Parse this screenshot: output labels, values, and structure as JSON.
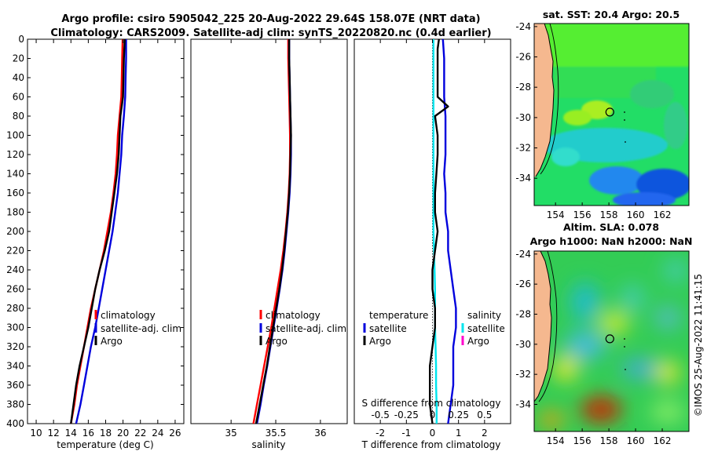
{
  "header": {
    "title_line1": "Argo profile: csiro 5905042_225 20-Aug-2022 29.64S 158.07E (NRT data)",
    "title_line2": "Climatology: CARS2009. Satellite-adj clim: synTS_20220820.nc (0.4d earlier)"
  },
  "colors": {
    "climatology": "#ff0000",
    "satellite": "#0000dd",
    "argo": "#000000",
    "sal_diff_sat": "#00e5ee",
    "sal_diff_argo": "#ff00cc",
    "land": "#f5b88f"
  },
  "chart_data": [
    {
      "id": "temperature",
      "type": "line",
      "xlabel": "temperature (deg C)",
      "ylabel": "",
      "xlim": [
        9,
        27
      ],
      "ylim": [
        400,
        0
      ],
      "xticks": [
        "10",
        "12",
        "14",
        "16",
        "18",
        "20",
        "22",
        "24",
        "26"
      ],
      "xtick_values": [
        10,
        12,
        14,
        16,
        18,
        20,
        22,
        24,
        26
      ],
      "yticks": [
        "0",
        "20",
        "40",
        "60",
        "80",
        "100",
        "120",
        "140",
        "160",
        "180",
        "200",
        "220",
        "240",
        "260",
        "280",
        "300",
        "320",
        "340",
        "360",
        "380",
        "400"
      ],
      "ytick_values": [
        0,
        20,
        40,
        60,
        80,
        100,
        120,
        140,
        160,
        180,
        200,
        220,
        240,
        260,
        280,
        300,
        320,
        340,
        360,
        380,
        400
      ],
      "legend": [
        "climatology",
        "satellite-adj. clim",
        "Argo"
      ],
      "series": [
        {
          "name": "climatology",
          "depth": [
            0,
            20,
            40,
            60,
            80,
            100,
            120,
            140,
            160,
            180,
            200,
            220,
            240,
            260,
            280,
            300,
            320,
            340,
            360,
            380,
            400
          ],
          "values": [
            19.95,
            19.9,
            19.85,
            19.8,
            19.6,
            19.4,
            19.3,
            19.15,
            18.9,
            18.6,
            18.2,
            17.8,
            17.3,
            16.8,
            16.3,
            15.9,
            15.5,
            15.1,
            14.7,
            14.4,
            14.0
          ]
        },
        {
          "name": "satellite-adj. clim",
          "depth": [
            0,
            20,
            40,
            60,
            80,
            100,
            120,
            140,
            160,
            180,
            200,
            220,
            240,
            260,
            280,
            300,
            320,
            340,
            360,
            380,
            400
          ],
          "values": [
            20.35,
            20.35,
            20.3,
            20.25,
            20.1,
            19.9,
            19.8,
            19.6,
            19.4,
            19.1,
            18.8,
            18.4,
            18.0,
            17.6,
            17.2,
            16.8,
            16.3,
            15.9,
            15.5,
            15.1,
            14.6
          ]
        },
        {
          "name": "Argo",
          "depth": [
            0,
            20,
            40,
            60,
            80,
            100,
            120,
            140,
            160,
            180,
            200,
            220,
            240,
            260,
            280,
            300,
            320,
            340,
            360,
            380,
            400
          ],
          "values": [
            20.2,
            20.1,
            20.05,
            20.0,
            19.7,
            19.6,
            19.5,
            19.3,
            19.0,
            18.7,
            18.4,
            17.9,
            17.3,
            16.8,
            16.4,
            16.0,
            15.5,
            15.0,
            14.6,
            14.3,
            14.0
          ]
        }
      ]
    },
    {
      "id": "salinity",
      "type": "line",
      "xlabel": "salinity",
      "ylabel": "",
      "xlim": [
        34.55,
        36.3
      ],
      "ylim": [
        400,
        0
      ],
      "xticks": [
        "35",
        "35.5",
        "36"
      ],
      "xtick_values": [
        35,
        35.5,
        36
      ],
      "legend": [
        "climatology",
        "satellite-adj. clim",
        "Argo"
      ],
      "series": [
        {
          "name": "climatology",
          "depth": [
            0,
            20,
            40,
            60,
            80,
            100,
            120,
            140,
            160,
            180,
            200,
            220,
            240,
            260,
            280,
            300,
            320,
            340,
            360,
            380,
            400
          ],
          "values": [
            35.64,
            35.64,
            35.645,
            35.65,
            35.655,
            35.66,
            35.66,
            35.655,
            35.645,
            35.63,
            35.61,
            35.585,
            35.555,
            35.52,
            35.485,
            35.45,
            35.41,
            35.37,
            35.33,
            35.29,
            35.25
          ]
        },
        {
          "name": "satellite-adj. clim",
          "depth": [
            0,
            20,
            40,
            60,
            80,
            100,
            120,
            140,
            160,
            180,
            200,
            220,
            240,
            260,
            280,
            300,
            320,
            340,
            360,
            380,
            400
          ],
          "values": [
            35.65,
            35.65,
            35.655,
            35.66,
            35.665,
            35.67,
            35.67,
            35.665,
            35.655,
            35.64,
            35.62,
            35.6,
            35.575,
            35.545,
            35.51,
            35.475,
            35.44,
            35.405,
            35.365,
            35.33,
            35.29
          ]
        },
        {
          "name": "Argo",
          "depth": [
            0,
            20,
            40,
            60,
            80,
            100,
            120,
            140,
            160,
            180,
            200,
            220,
            240,
            260,
            280,
            300,
            320,
            340,
            360,
            380,
            400
          ],
          "values": [
            35.65,
            35.65,
            35.655,
            35.66,
            35.665,
            35.67,
            35.665,
            35.66,
            35.65,
            35.635,
            35.615,
            35.595,
            35.57,
            35.54,
            35.505,
            35.47,
            35.435,
            35.4,
            35.36,
            35.32,
            35.28
          ]
        }
      ]
    },
    {
      "id": "difference",
      "type": "line",
      "xlabel": "T difference from climatology",
      "x2label": "S difference from climatology",
      "xlim": [
        -3,
        3
      ],
      "ylim": [
        400,
        0
      ],
      "xticks": [
        "-2",
        "-1",
        "0",
        "1",
        "2"
      ],
      "xtick_values": [
        -2,
        -1,
        0,
        1,
        2
      ],
      "x2ticks": [
        "-0.5",
        "-0.25",
        "0",
        "0.25",
        "0.5"
      ],
      "x2tick_values": [
        -0.5,
        -0.25,
        0,
        0.25,
        0.5
      ],
      "legend_temperature_title": "temperature",
      "legend_salinity_title": "salinity",
      "legend_temperature": [
        "satellite",
        "Argo"
      ],
      "legend_salinity": [
        "satellite",
        "Argo"
      ],
      "series": [
        {
          "name": "temperature satellite",
          "depth": [
            0,
            20,
            40,
            60,
            80,
            100,
            120,
            140,
            160,
            180,
            200,
            220,
            240,
            260,
            280,
            300,
            320,
            340,
            360,
            380,
            400
          ],
          "values": [
            0.4,
            0.45,
            0.45,
            0.45,
            0.5,
            0.5,
            0.5,
            0.45,
            0.5,
            0.5,
            0.6,
            0.6,
            0.7,
            0.8,
            0.9,
            0.9,
            0.8,
            0.8,
            0.8,
            0.7,
            0.6
          ]
        },
        {
          "name": "temperature Argo",
          "depth": [
            0,
            10,
            20,
            40,
            60,
            70,
            80,
            100,
            120,
            140,
            160,
            180,
            200,
            220,
            240,
            260,
            280,
            300,
            320,
            340,
            360,
            380,
            400
          ],
          "values": [
            0.25,
            0.2,
            0.2,
            0.2,
            0.2,
            0.6,
            0.1,
            0.2,
            0.2,
            0.15,
            0.1,
            0.1,
            0.2,
            0.1,
            0.0,
            0.0,
            0.1,
            0.1,
            0.0,
            -0.1,
            -0.1,
            -0.1,
            0.0
          ]
        },
        {
          "name": "salinity satellite",
          "depth": [
            0,
            20,
            40,
            60,
            80,
            100,
            120,
            140,
            160,
            180,
            200,
            220,
            240,
            260,
            280,
            300,
            320,
            340,
            360,
            380,
            400
          ],
          "values": [
            0.01,
            0.01,
            0.01,
            0.01,
            0.01,
            0.01,
            0.01,
            0.01,
            0.01,
            0.01,
            0.01,
            0.015,
            0.02,
            0.025,
            0.025,
            0.025,
            0.03,
            0.035,
            0.035,
            0.04,
            0.04
          ]
        }
      ]
    },
    {
      "id": "sst_map",
      "type": "heatmap",
      "title": "sat. SST: 20.4 Argo: 20.5",
      "xticks": [
        "154",
        "156",
        "158",
        "160",
        "162"
      ],
      "xtick_values": [
        154,
        156,
        158,
        160,
        162
      ],
      "yticks": [
        "-24",
        "-26",
        "-28",
        "-30",
        "-32",
        "-34"
      ],
      "ytick_values": [
        -24,
        -26,
        -28,
        -30,
        -32,
        -34
      ],
      "xlim": [
        152.4,
        164.0
      ],
      "ylim": [
        -35.8,
        -23.8
      ],
      "argo_position": {
        "lon": 158.07,
        "lat": -29.64
      }
    },
    {
      "id": "sla_map",
      "type": "heatmap",
      "title_line1": "Altim. SLA: 0.078",
      "title_line2": "Argo h1000: NaN h2000: NaN",
      "xticks": [
        "154",
        "156",
        "158",
        "160",
        "162"
      ],
      "xtick_values": [
        154,
        156,
        158,
        160,
        162
      ],
      "yticks": [
        "-24",
        "-26",
        "-28",
        "-30",
        "-32",
        "-34"
      ],
      "ytick_values": [
        -24,
        -26,
        -28,
        -30,
        -32,
        -34
      ],
      "xlim": [
        152.4,
        164.0
      ],
      "ylim": [
        -35.8,
        -23.8
      ],
      "argo_position": {
        "lon": 158.07,
        "lat": -29.64
      }
    }
  ],
  "footer": {
    "credit": "©IMOS 25-Aug-2022 11:41:15"
  }
}
